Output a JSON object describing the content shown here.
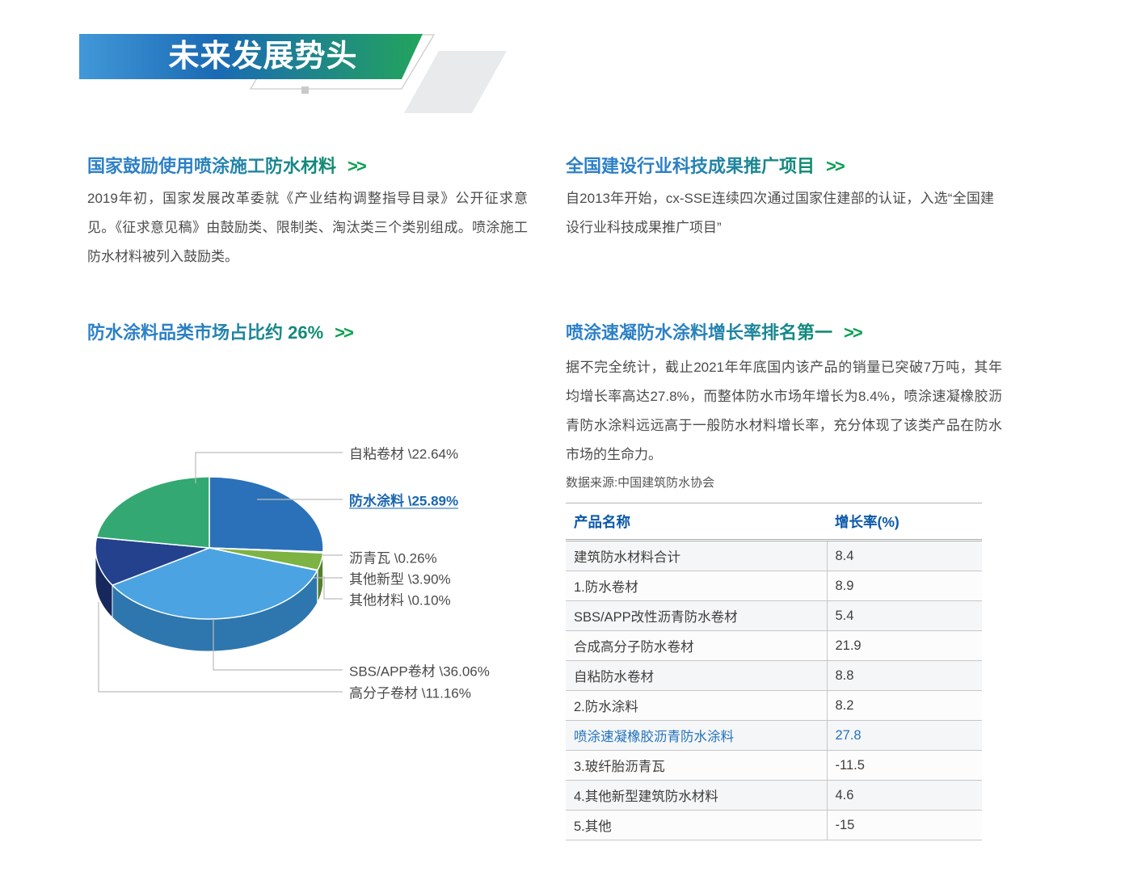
{
  "banner": {
    "title": "未来发展势头"
  },
  "sections": {
    "s1": {
      "title": "国家鼓励使用喷涂施工防水材料",
      "arrow": ">>",
      "body": "2019年初，国家发展改革委就《产业结构调整指导目录》公开征求意见。《征求意见稿》由鼓励类、限制类、淘汰类三个类别组成。喷涂施工防水材料被列入鼓励类。"
    },
    "s2": {
      "title": "全国建设行业科技成果推广项目",
      "arrow": ">>",
      "body": "自2013年开始，cx-SSE连续四次通过国家住建部的认证，入选“全国建设行业科技成果推广项目”"
    },
    "s3": {
      "title": "防水涂料品类市场占比约 26%",
      "arrow": ">>"
    },
    "s4": {
      "title": "喷涂速凝防水涂料增长率排名第一",
      "arrow": ">>",
      "body": "据不完全统计，截止2021年年底国内该产品的销量已突破7万吨，其年均增长率高达27.8%，而整体防水市场年增长为8.4%，喷涂速凝橡胶沥青防水涂料远远高于一般防水材料增长率，充分体现了该类产品在防水市场的生命力。",
      "source": "数据来源:中国建筑防水协会"
    }
  },
  "chart_data": {
    "type": "pie",
    "title": "防水涂料品类市场占比约 26%",
    "unit": "%",
    "style": "3d",
    "clockwise": true,
    "start_angle_deg": 0,
    "slices": [
      {
        "name": "防水涂料",
        "value": 25.89,
        "label": "防水涂料 \\25.89%",
        "color": "#2A71B9",
        "side": "#1D507F",
        "highlight": true
      },
      {
        "name": "沥青瓦",
        "value": 0.26,
        "label": "沥青瓦 \\0.26%",
        "color": "#F2A24D",
        "side": "#B06F2D"
      },
      {
        "name": "其他新型",
        "value": 3.9,
        "label": "其他新型 \\3.90%",
        "color": "#7CB342",
        "side": "#55802C"
      },
      {
        "name": "其他材料",
        "value": 0.1,
        "label": "其他材料 \\0.10%",
        "color": "#D9D9D9",
        "side": "#9E9E9E"
      },
      {
        "name": "SBS/APP卷材",
        "value": 36.06,
        "label": "SBS/APP卷材 \\36.06%",
        "color": "#4BA3E2",
        "side": "#2E76AE"
      },
      {
        "name": "高分子卷材",
        "value": 11.16,
        "label": "高分子卷材 \\11.16%",
        "color": "#24418D",
        "side": "#16285C"
      },
      {
        "name": "自粘卷材",
        "value": 22.64,
        "label": "自粘卷材 \\22.64%",
        "color": "#33A873",
        "side": "#1F7A50"
      }
    ]
  },
  "table": {
    "headers": [
      "产品名称",
      "增长率(%)"
    ],
    "highlight_color": "#2273BD",
    "rows": [
      {
        "name": "建筑防水材料合计",
        "value": "8.4"
      },
      {
        "name": "1.防水卷材",
        "value": "8.9"
      },
      {
        "name": "SBS/APP改性沥青防水卷材",
        "value": "5.4"
      },
      {
        "name": "合成高分子防水卷材",
        "value": "21.9"
      },
      {
        "name": "自粘防水卷材",
        "value": "8.8"
      },
      {
        "name": "2.防水涂料",
        "value": "8.2"
      },
      {
        "name": "喷涂速凝橡胶沥青防水涂料",
        "value": "27.8",
        "highlight": true
      },
      {
        "name": "3.玻纤胎沥青瓦",
        "value": "-11.5"
      },
      {
        "name": "4.其他新型建筑防水材料",
        "value": "4.6"
      },
      {
        "name": "5.其他",
        "value": "-15"
      }
    ]
  },
  "colors": {
    "banner_gradient": [
      "#4298D8",
      "#1A6AB4",
      "#23A45C"
    ],
    "heading_gradient": [
      "#2C80C6",
      "#0E8A6E"
    ],
    "arrow_green": "#09A052",
    "table_header_blue": "#0A58A9",
    "link_blue": "#1A66B0"
  }
}
